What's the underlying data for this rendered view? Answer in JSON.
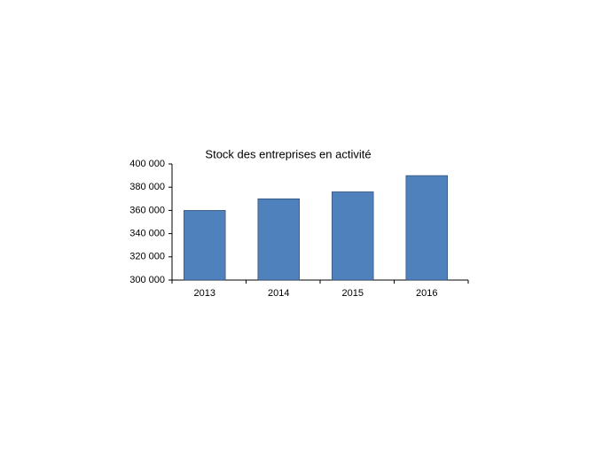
{
  "chart_data": {
    "type": "bar",
    "title": "Stock des entreprises en activité",
    "categories": [
      "2013",
      "2014",
      "2015",
      "2016"
    ],
    "values": [
      360000,
      370000,
      376000,
      390000
    ],
    "color": "#4f81bd",
    "ylim": [
      300000,
      400000
    ],
    "yticks": [
      {
        "value": 300000,
        "label": "300 000"
      },
      {
        "value": 320000,
        "label": "320 000"
      },
      {
        "value": 340000,
        "label": "340 000"
      },
      {
        "value": 360000,
        "label": "360 000"
      },
      {
        "value": 380000,
        "label": "380 000"
      },
      {
        "value": 400000,
        "label": "400 000"
      }
    ],
    "grid": false
  }
}
